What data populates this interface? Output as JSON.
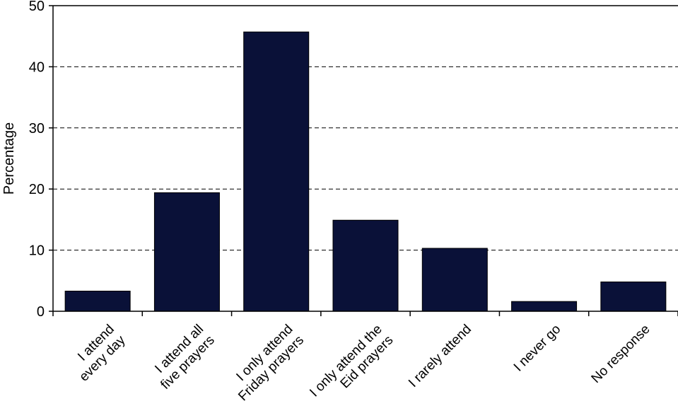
{
  "chart_data": {
    "type": "bar",
    "title": "",
    "xlabel": "",
    "ylabel": "Percentage",
    "ylim": [
      0,
      50
    ],
    "yticks": [
      0,
      10,
      20,
      30,
      40,
      50
    ],
    "grid": "dashed horizontal lines at 10, 20, 30, 40",
    "legend": "none",
    "bar_color": "#0a1138",
    "categories": [
      [
        "I attend",
        "every day"
      ],
      [
        "I attend all",
        "five prayers"
      ],
      [
        "I only attend",
        "Friday prayers"
      ],
      [
        "I only attend the",
        "Eid prayers"
      ],
      [
        "I rarely attend"
      ],
      [
        "I never go"
      ],
      [
        "No response"
      ]
    ],
    "values": [
      3.3,
      19.4,
      45.7,
      14.9,
      10.3,
      1.6,
      4.8
    ]
  }
}
